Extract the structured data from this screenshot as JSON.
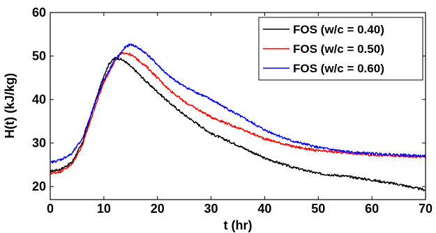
{
  "chart_data": {
    "type": "line",
    "title": "",
    "xlabel": "t (hr)",
    "ylabel": "H(t) (kJ/kg)",
    "xlim": [
      0,
      70
    ],
    "ylim": [
      17,
      60
    ],
    "xticks": [
      "0",
      "10",
      "20",
      "30",
      "40",
      "50",
      "60",
      "70"
    ],
    "yticks": [
      "20",
      "30",
      "40",
      "50",
      "60"
    ],
    "grid": false,
    "legend_position": "top-right",
    "series": [
      {
        "name": "FOS (w/c = 0.40)",
        "color": "#000000",
        "x": [
          0,
          2,
          4,
          6,
          8,
          10,
          11,
          12,
          13,
          14,
          16,
          18,
          20,
          22,
          25,
          30,
          35,
          40,
          45,
          50,
          55,
          60,
          65,
          70
        ],
        "y": [
          23.5,
          24,
          25.5,
          30,
          38,
          45.5,
          48.3,
          49.5,
          49.4,
          48.7,
          46.5,
          44,
          41.8,
          39.5,
          36.5,
          32.2,
          29.5,
          26.5,
          24.5,
          23,
          22.4,
          21.5,
          20.5,
          19.2
        ]
      },
      {
        "name": "FOS (w/c = 0.50)",
        "color": "#ff0000",
        "x": [
          0,
          2,
          4,
          6,
          8,
          10,
          12,
          13,
          14,
          15,
          16,
          18,
          20,
          22,
          25,
          30,
          35,
          40,
          45,
          50,
          55,
          60,
          65,
          70
        ],
        "y": [
          23,
          23.5,
          25,
          29.5,
          37,
          44,
          48.8,
          50.3,
          50.8,
          50.3,
          49.5,
          47.5,
          45,
          42.5,
          39.5,
          36,
          33.5,
          31,
          29.3,
          28.2,
          27.8,
          27.3,
          27,
          26.8
        ]
      },
      {
        "name": "FOS (w/c = 0.60)",
        "color": "#0000ff",
        "x": [
          0,
          2,
          4,
          6,
          8,
          10,
          12,
          14,
          15,
          16,
          18,
          20,
          22,
          25,
          30,
          35,
          40,
          45,
          50,
          55,
          60,
          65,
          70
        ],
        "y": [
          25.5,
          26.2,
          27.5,
          31,
          38,
          44.5,
          49,
          52,
          52.7,
          52.2,
          50.5,
          48,
          45.5,
          43,
          40,
          36.5,
          33,
          30.5,
          29,
          28,
          27.6,
          27.3,
          27
        ]
      }
    ]
  }
}
